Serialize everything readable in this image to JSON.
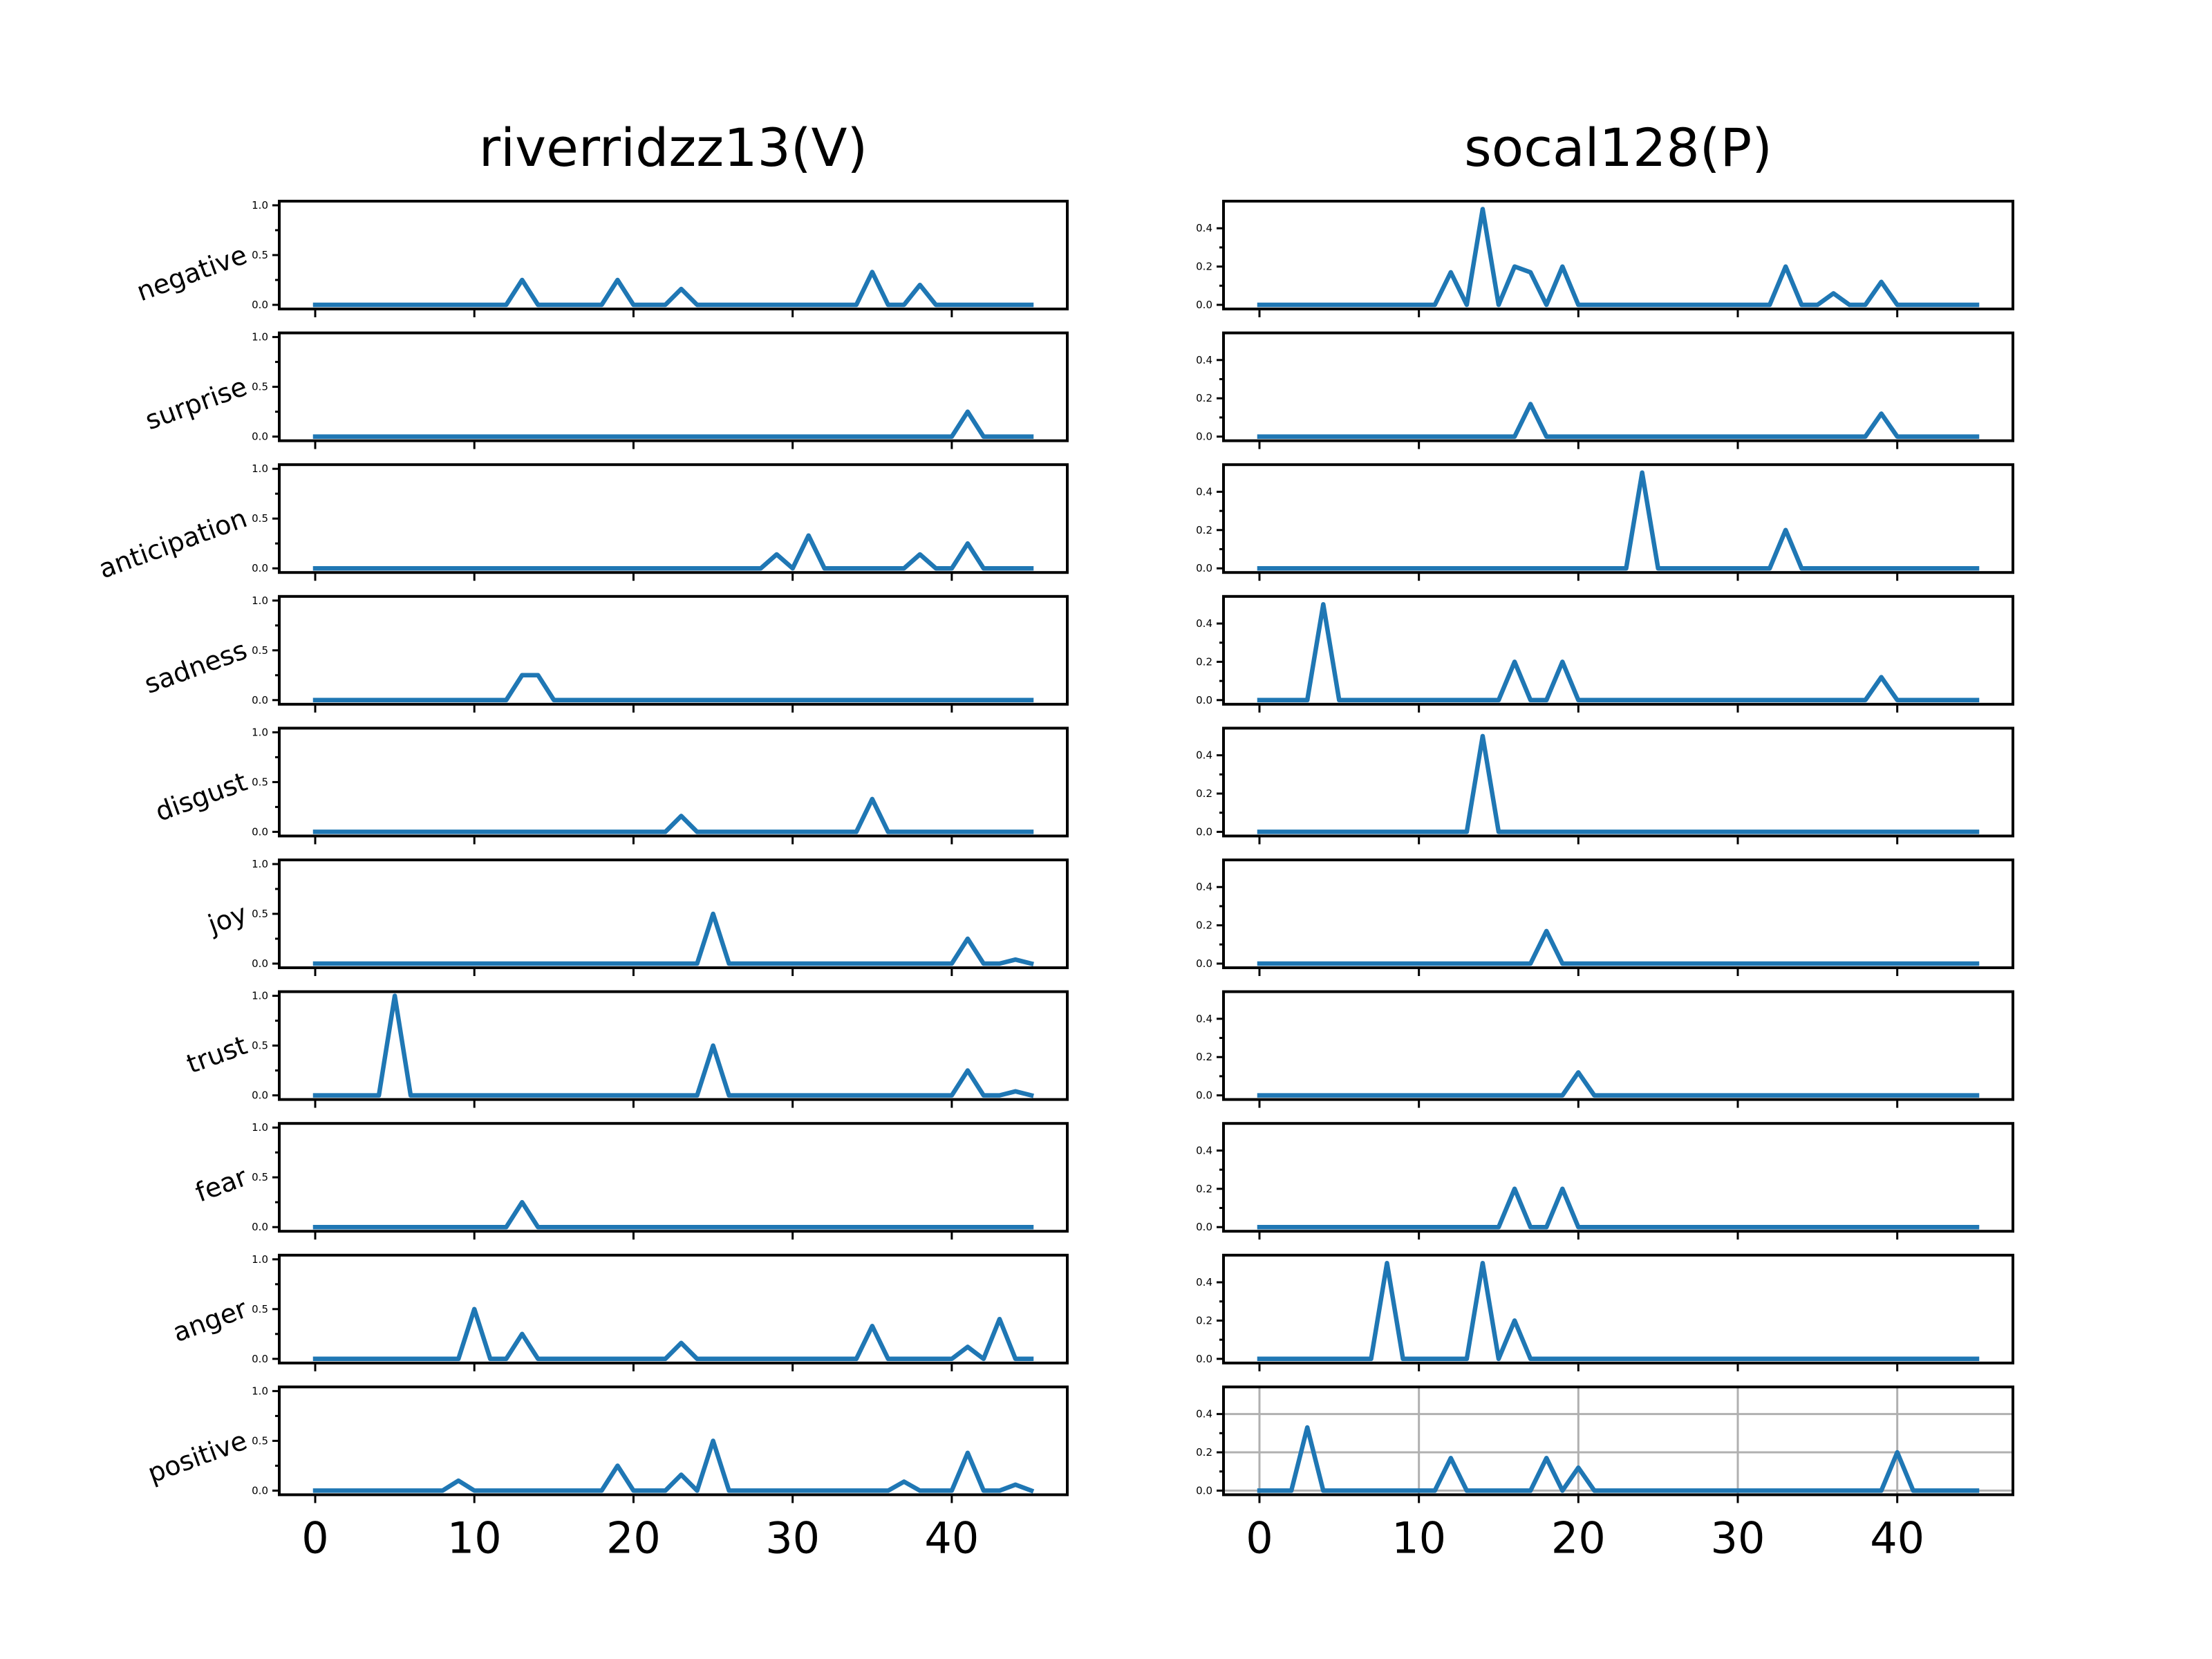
{
  "chart_data": {
    "type": "line",
    "colors": {
      "line": "#1f77b4",
      "grid": "#b0b0b0"
    },
    "emotions": [
      "negative",
      "surprise",
      "anticipation",
      "sadness",
      "disgust",
      "joy",
      "trust",
      "fear",
      "anger",
      "positive"
    ],
    "x_ticks": [
      0,
      10,
      20,
      30,
      40
    ],
    "columns": [
      {
        "title": "riverridzz13(V)",
        "ylim": [
          0,
          1.0
        ],
        "y_ticks": [
          "0.0",
          "0.5",
          "1.0"
        ],
        "y_tick_values": [
          0,
          0.5,
          1.0
        ],
        "series": {
          "negative": [
            [
              0,
              0
            ],
            [
              12,
              0
            ],
            [
              13,
              0.25
            ],
            [
              14,
              0
            ],
            [
              18,
              0
            ],
            [
              19,
              0.25
            ],
            [
              20,
              0
            ],
            [
              22,
              0
            ],
            [
              23,
              0.16
            ],
            [
              24,
              0
            ],
            [
              34,
              0
            ],
            [
              35,
              0.33
            ],
            [
              36,
              0
            ],
            [
              37,
              0
            ],
            [
              38,
              0.2
            ],
            [
              39,
              0
            ],
            [
              45,
              0
            ]
          ],
          "surprise": [
            [
              0,
              0
            ],
            [
              40,
              0
            ],
            [
              41,
              0.25
            ],
            [
              42,
              0
            ],
            [
              45,
              0
            ]
          ],
          "anticipation": [
            [
              0,
              0
            ],
            [
              28,
              0
            ],
            [
              29,
              0.14
            ],
            [
              30,
              0
            ],
            [
              31,
              0.33
            ],
            [
              32,
              0
            ],
            [
              37,
              0
            ],
            [
              38,
              0.14
            ],
            [
              39,
              0
            ],
            [
              40,
              0
            ],
            [
              41,
              0.25
            ],
            [
              42,
              0
            ],
            [
              45,
              0
            ]
          ],
          "sadness": [
            [
              0,
              0
            ],
            [
              12,
              0
            ],
            [
              13,
              0.25
            ],
            [
              14,
              0.25
            ],
            [
              15,
              0
            ],
            [
              45,
              0
            ]
          ],
          "disgust": [
            [
              0,
              0
            ],
            [
              22,
              0
            ],
            [
              23,
              0.16
            ],
            [
              24,
              0
            ],
            [
              34,
              0
            ],
            [
              35,
              0.33
            ],
            [
              36,
              0
            ],
            [
              45,
              0
            ]
          ],
          "joy": [
            [
              0,
              0
            ],
            [
              24,
              0
            ],
            [
              25,
              0.5
            ],
            [
              26,
              0
            ],
            [
              40,
              0
            ],
            [
              41,
              0.25
            ],
            [
              42,
              0
            ],
            [
              43,
              0
            ],
            [
              44,
              0.04
            ],
            [
              45,
              0
            ]
          ],
          "trust": [
            [
              0,
              0
            ],
            [
              4,
              0
            ],
            [
              5,
              1.0
            ],
            [
              6,
              0
            ],
            [
              24,
              0
            ],
            [
              25,
              0.5
            ],
            [
              26,
              0
            ],
            [
              40,
              0
            ],
            [
              41,
              0.25
            ],
            [
              42,
              0
            ],
            [
              43,
              0
            ],
            [
              44,
              0.04
            ],
            [
              45,
              0
            ]
          ],
          "fear": [
            [
              0,
              0
            ],
            [
              12,
              0
            ],
            [
              13,
              0.25
            ],
            [
              14,
              0
            ],
            [
              45,
              0
            ]
          ],
          "anger": [
            [
              0,
              0
            ],
            [
              9,
              0
            ],
            [
              10,
              0.5
            ],
            [
              11,
              0
            ],
            [
              12,
              0
            ],
            [
              13,
              0.25
            ],
            [
              14,
              0
            ],
            [
              22,
              0
            ],
            [
              23,
              0.16
            ],
            [
              24,
              0
            ],
            [
              34,
              0
            ],
            [
              35,
              0.33
            ],
            [
              36,
              0
            ],
            [
              40,
              0
            ],
            [
              41,
              0.12
            ],
            [
              42,
              0
            ],
            [
              43,
              0.4
            ],
            [
              44,
              0
            ],
            [
              45,
              0
            ]
          ],
          "positive": [
            [
              0,
              0
            ],
            [
              8,
              0
            ],
            [
              9,
              0.1
            ],
            [
              10,
              0
            ],
            [
              18,
              0
            ],
            [
              19,
              0.25
            ],
            [
              20,
              0
            ],
            [
              22,
              0
            ],
            [
              23,
              0.16
            ],
            [
              24,
              0
            ],
            [
              25,
              0.5
            ],
            [
              26,
              0
            ],
            [
              36,
              0
            ],
            [
              37,
              0.09
            ],
            [
              38,
              0
            ],
            [
              40,
              0
            ],
            [
              41,
              0.38
            ],
            [
              42,
              0
            ],
            [
              43,
              0
            ],
            [
              44,
              0.06
            ],
            [
              45,
              0
            ]
          ]
        }
      },
      {
        "title": "socal128(P)",
        "ylim": [
          0,
          0.52
        ],
        "y_ticks": [
          "0.0",
          "0.2",
          "0.4"
        ],
        "y_tick_values": [
          0,
          0.2,
          0.4
        ],
        "grid_on_row": "positive",
        "grid_x": [
          0,
          10,
          20,
          30,
          40
        ],
        "grid_y": [
          0,
          0.2,
          0.4
        ],
        "series": {
          "negative": [
            [
              0,
              0
            ],
            [
              11,
              0
            ],
            [
              12,
              0.17
            ],
            [
              13,
              0
            ],
            [
              14,
              0.5
            ],
            [
              15,
              0
            ],
            [
              16,
              0.2
            ],
            [
              17,
              0.17
            ],
            [
              18,
              0
            ],
            [
              19,
              0.2
            ],
            [
              20,
              0
            ],
            [
              32,
              0
            ],
            [
              33,
              0.2
            ],
            [
              34,
              0
            ],
            [
              35,
              0
            ],
            [
              36,
              0.06
            ],
            [
              37,
              0
            ],
            [
              38,
              0
            ],
            [
              39,
              0.12
            ],
            [
              40,
              0
            ],
            [
              45,
              0
            ]
          ],
          "surprise": [
            [
              0,
              0
            ],
            [
              16,
              0
            ],
            [
              17,
              0.17
            ],
            [
              18,
              0
            ],
            [
              38,
              0
            ],
            [
              39,
              0.12
            ],
            [
              40,
              0
            ],
            [
              45,
              0
            ]
          ],
          "anticipation": [
            [
              0,
              0
            ],
            [
              23,
              0
            ],
            [
              24,
              0.5
            ],
            [
              25,
              0
            ],
            [
              32,
              0
            ],
            [
              33,
              0.2
            ],
            [
              34,
              0
            ],
            [
              45,
              0
            ]
          ],
          "sadness": [
            [
              0,
              0
            ],
            [
              3,
              0
            ],
            [
              4,
              0.5
            ],
            [
              5,
              0
            ],
            [
              15,
              0
            ],
            [
              16,
              0.2
            ],
            [
              17,
              0
            ],
            [
              18,
              0
            ],
            [
              19,
              0.2
            ],
            [
              20,
              0
            ],
            [
              38,
              0
            ],
            [
              39,
              0.12
            ],
            [
              40,
              0
            ],
            [
              45,
              0
            ]
          ],
          "disgust": [
            [
              0,
              0
            ],
            [
              13,
              0
            ],
            [
              14,
              0.5
            ],
            [
              15,
              0
            ],
            [
              45,
              0
            ]
          ],
          "joy": [
            [
              0,
              0
            ],
            [
              17,
              0
            ],
            [
              18,
              0.17
            ],
            [
              19,
              0
            ],
            [
              45,
              0
            ]
          ],
          "trust": [
            [
              0,
              0
            ],
            [
              19,
              0
            ],
            [
              20,
              0.12
            ],
            [
              21,
              0
            ],
            [
              45,
              0
            ]
          ],
          "fear": [
            [
              0,
              0
            ],
            [
              15,
              0
            ],
            [
              16,
              0.2
            ],
            [
              17,
              0
            ],
            [
              18,
              0
            ],
            [
              19,
              0.2
            ],
            [
              20,
              0
            ],
            [
              45,
              0
            ]
          ],
          "anger": [
            [
              0,
              0
            ],
            [
              7,
              0
            ],
            [
              8,
              0.5
            ],
            [
              9,
              0
            ],
            [
              13,
              0
            ],
            [
              14,
              0.5
            ],
            [
              15,
              0
            ],
            [
              16,
              0.2
            ],
            [
              17,
              0
            ],
            [
              45,
              0
            ]
          ],
          "positive": [
            [
              0,
              0
            ],
            [
              2,
              0
            ],
            [
              3,
              0.33
            ],
            [
              4,
              0
            ],
            [
              11,
              0
            ],
            [
              12,
              0.17
            ],
            [
              13,
              0
            ],
            [
              17,
              0
            ],
            [
              18,
              0.17
            ],
            [
              19,
              0
            ],
            [
              20,
              0.12
            ],
            [
              21,
              0
            ],
            [
              39,
              0
            ],
            [
              40,
              0.2
            ],
            [
              41,
              0
            ],
            [
              45,
              0
            ]
          ]
        }
      }
    ]
  }
}
